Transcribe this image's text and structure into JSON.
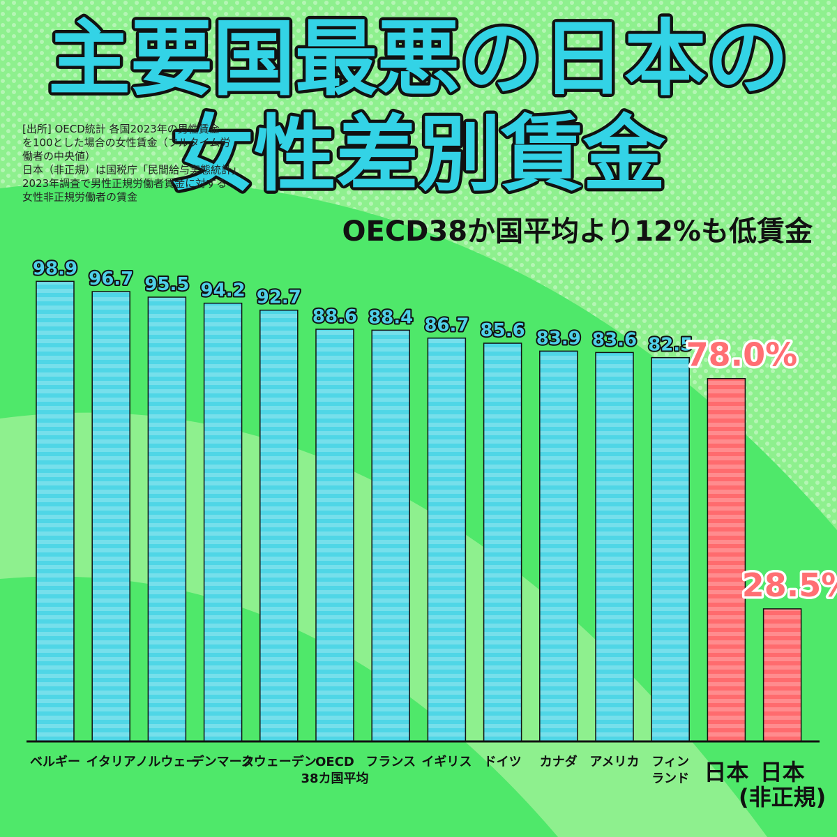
{
  "chart_data": {
    "type": "bar",
    "title": "主要国最悪の日本の\n女性差別賃金",
    "subtitle": "OECD38か国平均より12%も低賃金",
    "source_note": [
      "[出所] OECD統計 各国2023年の男性賃金",
      "を100とした場合の女性賃金（フルタイム労",
      "働者の中央値）",
      "日本（非正規）は国税庁「民間給与実態統計」",
      "2023年調査で男性正規労働者賃金に対する",
      "女性非正規労働者の賃金"
    ],
    "categories": [
      "ベルギー",
      "イタリア",
      "ノルウェー",
      "デンマーク",
      "スウェーデン",
      "OECD\n38カ国平均",
      "フランス",
      "イギリス",
      "ドイツ",
      "カナダ",
      "アメリカ",
      "フィン\nランド",
      "日本",
      "日本\n(非正規)"
    ],
    "values": [
      98.9,
      96.7,
      95.5,
      94.2,
      92.7,
      88.6,
      88.4,
      86.7,
      85.6,
      83.9,
      83.6,
      82.5,
      78.0,
      28.5
    ],
    "value_labels": [
      "98.9",
      "96.7",
      "95.5",
      "94.2",
      "92.7",
      "88.6",
      "88.4",
      "86.7",
      "85.6",
      "83.9",
      "83.6",
      "82.5",
      "78.0%",
      "28.5%"
    ],
    "colors": [
      "#4fd6e6",
      "#4fd6e6",
      "#4fd6e6",
      "#4fd6e6",
      "#4fd6e6",
      "#4fd6e6",
      "#4fd6e6",
      "#4fd6e6",
      "#4fd6e6",
      "#4fd6e6",
      "#4fd6e6",
      "#4fd6e6",
      "#ff6b6e",
      "#ff6b6e"
    ],
    "ylim": [
      0,
      100
    ]
  }
}
